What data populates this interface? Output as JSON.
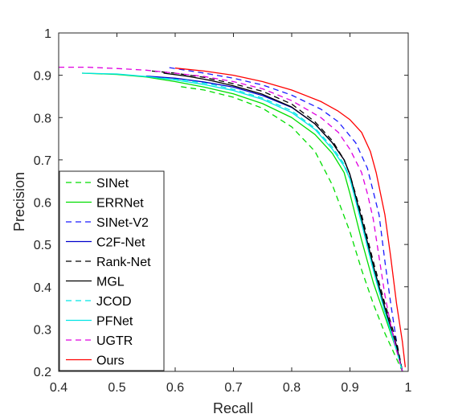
{
  "chart_data": {
    "type": "line",
    "title": "",
    "xlabel": "Recall",
    "ylabel": "Precision",
    "xlim": [
      0.4,
      1.0
    ],
    "ylim": [
      0.2,
      1.0
    ],
    "xticks": [
      "0.4",
      "0.5",
      "0.6",
      "0.7",
      "0.8",
      "0.9",
      "1"
    ],
    "yticks": [
      "0.2",
      "0.3",
      "0.4",
      "0.5",
      "0.6",
      "0.7",
      "0.8",
      "0.9",
      "1"
    ],
    "grid": false,
    "legend_position": "bottom-left",
    "series": [
      {
        "name": "SINet",
        "color": "#00dd00",
        "dash": "dashed",
        "points": [
          [
            0.61,
            0.873
          ],
          [
            0.65,
            0.865
          ],
          [
            0.7,
            0.848
          ],
          [
            0.75,
            0.822
          ],
          [
            0.8,
            0.778
          ],
          [
            0.84,
            0.72
          ],
          [
            0.87,
            0.64
          ],
          [
            0.9,
            0.53
          ],
          [
            0.92,
            0.44
          ],
          [
            0.94,
            0.36
          ],
          [
            0.96,
            0.29
          ],
          [
            0.98,
            0.23
          ],
          [
            0.99,
            0.2
          ]
        ]
      },
      {
        "name": "ERRNet",
        "color": "#00dd00",
        "dash": "solid",
        "points": [
          [
            0.44,
            0.905
          ],
          [
            0.5,
            0.902
          ],
          [
            0.55,
            0.896
          ],
          [
            0.6,
            0.885
          ],
          [
            0.65,
            0.872
          ],
          [
            0.7,
            0.856
          ],
          [
            0.75,
            0.833
          ],
          [
            0.8,
            0.8
          ],
          [
            0.84,
            0.76
          ],
          [
            0.87,
            0.715
          ],
          [
            0.89,
            0.67
          ],
          [
            0.9,
            0.62
          ],
          [
            0.92,
            0.51
          ],
          [
            0.94,
            0.41
          ],
          [
            0.96,
            0.33
          ],
          [
            0.98,
            0.25
          ],
          [
            0.99,
            0.2
          ]
        ]
      },
      {
        "name": "SINet-V2",
        "color": "#1a1aff",
        "dash": "dashed",
        "points": [
          [
            0.59,
            0.918
          ],
          [
            0.65,
            0.905
          ],
          [
            0.7,
            0.893
          ],
          [
            0.75,
            0.877
          ],
          [
            0.8,
            0.853
          ],
          [
            0.85,
            0.82
          ],
          [
            0.88,
            0.79
          ],
          [
            0.91,
            0.74
          ],
          [
            0.93,
            0.68
          ],
          [
            0.95,
            0.57
          ],
          [
            0.96,
            0.46
          ],
          [
            0.97,
            0.36
          ],
          [
            0.98,
            0.27
          ],
          [
            0.99,
            0.2
          ]
        ]
      },
      {
        "name": "C2F-Net",
        "color": "#0000cc",
        "dash": "solid",
        "points": [
          [
            0.55,
            0.898
          ],
          [
            0.6,
            0.893
          ],
          [
            0.65,
            0.884
          ],
          [
            0.7,
            0.872
          ],
          [
            0.75,
            0.852
          ],
          [
            0.8,
            0.824
          ],
          [
            0.84,
            0.785
          ],
          [
            0.87,
            0.74
          ],
          [
            0.89,
            0.7
          ],
          [
            0.9,
            0.665
          ],
          [
            0.92,
            0.56
          ],
          [
            0.94,
            0.45
          ],
          [
            0.96,
            0.35
          ],
          [
            0.98,
            0.26
          ],
          [
            0.99,
            0.2
          ]
        ]
      },
      {
        "name": "Rank-Net",
        "color": "#000000",
        "dash": "dashed",
        "points": [
          [
            0.56,
            0.91
          ],
          [
            0.6,
            0.905
          ],
          [
            0.65,
            0.895
          ],
          [
            0.7,
            0.88
          ],
          [
            0.75,
            0.862
          ],
          [
            0.8,
            0.832
          ],
          [
            0.84,
            0.79
          ],
          [
            0.87,
            0.745
          ],
          [
            0.89,
            0.7
          ],
          [
            0.9,
            0.665
          ],
          [
            0.92,
            0.57
          ],
          [
            0.94,
            0.46
          ],
          [
            0.96,
            0.36
          ],
          [
            0.98,
            0.27
          ],
          [
            0.99,
            0.2
          ]
        ]
      },
      {
        "name": "MGL",
        "color": "#000000",
        "dash": "solid",
        "points": [
          [
            0.58,
            0.905
          ],
          [
            0.62,
            0.898
          ],
          [
            0.66,
            0.888
          ],
          [
            0.7,
            0.875
          ],
          [
            0.75,
            0.855
          ],
          [
            0.8,
            0.825
          ],
          [
            0.84,
            0.785
          ],
          [
            0.87,
            0.74
          ],
          [
            0.89,
            0.7
          ],
          [
            0.9,
            0.665
          ],
          [
            0.92,
            0.56
          ],
          [
            0.94,
            0.45
          ],
          [
            0.96,
            0.35
          ],
          [
            0.98,
            0.26
          ],
          [
            0.99,
            0.2
          ]
        ]
      },
      {
        "name": "JCOD",
        "color": "#00e5e5",
        "dash": "dashed",
        "points": [
          [
            0.58,
            0.893
          ],
          [
            0.62,
            0.888
          ],
          [
            0.66,
            0.879
          ],
          [
            0.7,
            0.867
          ],
          [
            0.75,
            0.846
          ],
          [
            0.8,
            0.816
          ],
          [
            0.84,
            0.775
          ],
          [
            0.87,
            0.73
          ],
          [
            0.89,
            0.69
          ],
          [
            0.9,
            0.655
          ],
          [
            0.92,
            0.55
          ],
          [
            0.94,
            0.44
          ],
          [
            0.96,
            0.34
          ],
          [
            0.98,
            0.25
          ],
          [
            0.99,
            0.2
          ]
        ]
      },
      {
        "name": "PFNet",
        "color": "#00e5e5",
        "dash": "solid",
        "points": [
          [
            0.44,
            0.905
          ],
          [
            0.5,
            0.903
          ],
          [
            0.55,
            0.897
          ],
          [
            0.6,
            0.889
          ],
          [
            0.65,
            0.878
          ],
          [
            0.7,
            0.864
          ],
          [
            0.75,
            0.843
          ],
          [
            0.8,
            0.812
          ],
          [
            0.84,
            0.772
          ],
          [
            0.87,
            0.725
          ],
          [
            0.89,
            0.685
          ],
          [
            0.9,
            0.655
          ],
          [
            0.92,
            0.55
          ],
          [
            0.94,
            0.44
          ],
          [
            0.96,
            0.34
          ],
          [
            0.98,
            0.25
          ],
          [
            0.99,
            0.2
          ]
        ]
      },
      {
        "name": "UGTR",
        "color": "#e000e0",
        "dash": "dashed",
        "points": [
          [
            0.4,
            0.919
          ],
          [
            0.45,
            0.919
          ],
          [
            0.5,
            0.916
          ],
          [
            0.55,
            0.912
          ],
          [
            0.6,
            0.905
          ],
          [
            0.65,
            0.897
          ],
          [
            0.7,
            0.885
          ],
          [
            0.75,
            0.868
          ],
          [
            0.8,
            0.84
          ],
          [
            0.85,
            0.8
          ],
          [
            0.88,
            0.765
          ],
          [
            0.9,
            0.725
          ],
          [
            0.92,
            0.67
          ],
          [
            0.93,
            0.62
          ],
          [
            0.94,
            0.56
          ],
          [
            0.95,
            0.47
          ],
          [
            0.96,
            0.38
          ],
          [
            0.97,
            0.31
          ],
          [
            0.98,
            0.25
          ],
          [
            0.99,
            0.2
          ]
        ]
      },
      {
        "name": "Ours",
        "color": "#ff0000",
        "dash": "solid",
        "points": [
          [
            0.6,
            0.917
          ],
          [
            0.65,
            0.91
          ],
          [
            0.7,
            0.9
          ],
          [
            0.75,
            0.885
          ],
          [
            0.8,
            0.865
          ],
          [
            0.85,
            0.838
          ],
          [
            0.88,
            0.815
          ],
          [
            0.9,
            0.795
          ],
          [
            0.92,
            0.765
          ],
          [
            0.935,
            0.72
          ],
          [
            0.945,
            0.67
          ],
          [
            0.96,
            0.57
          ],
          [
            0.97,
            0.47
          ],
          [
            0.98,
            0.36
          ],
          [
            0.99,
            0.27
          ],
          [
            0.995,
            0.21
          ]
        ]
      }
    ]
  }
}
